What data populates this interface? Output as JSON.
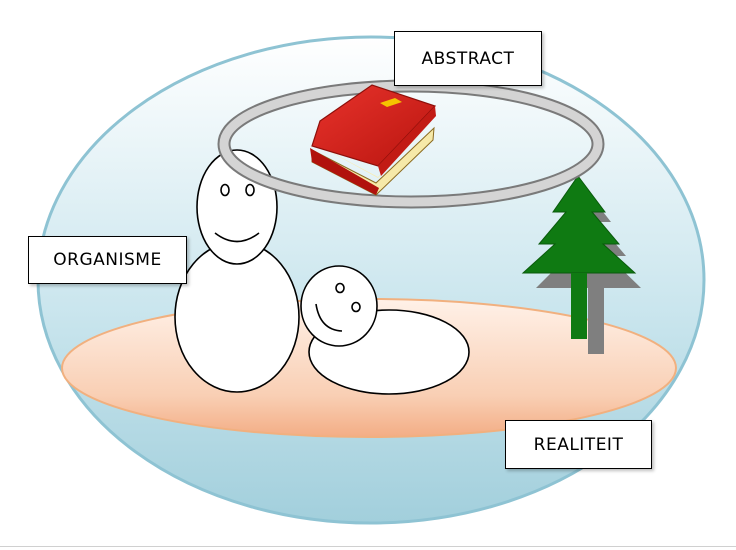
{
  "labels": {
    "abstract": "ABSTRACT",
    "organisme": "ORGANISME",
    "realiteit": "REALITEIT"
  },
  "colors": {
    "world_top": "#ffffff",
    "world_bottom": "#a9d3df",
    "world_border": "#8ec3d3",
    "ground_fill_top": "#fde6d8",
    "ground_fill_bottom": "#f6b894",
    "ground_border": "#f3b07e",
    "halo": "#c8c8c8",
    "book_cover": "#d9241f",
    "book_pages": "#f6e9a8",
    "book_tag": "#f5c400",
    "tree": "#0f7a12",
    "tree_shadow": "#808080",
    "figure_fill": "#ffffff",
    "figure_stroke": "#000000"
  },
  "icons": [
    "book-icon",
    "tree-icon",
    "standing-figure",
    "lying-figure",
    "halo-ring"
  ]
}
